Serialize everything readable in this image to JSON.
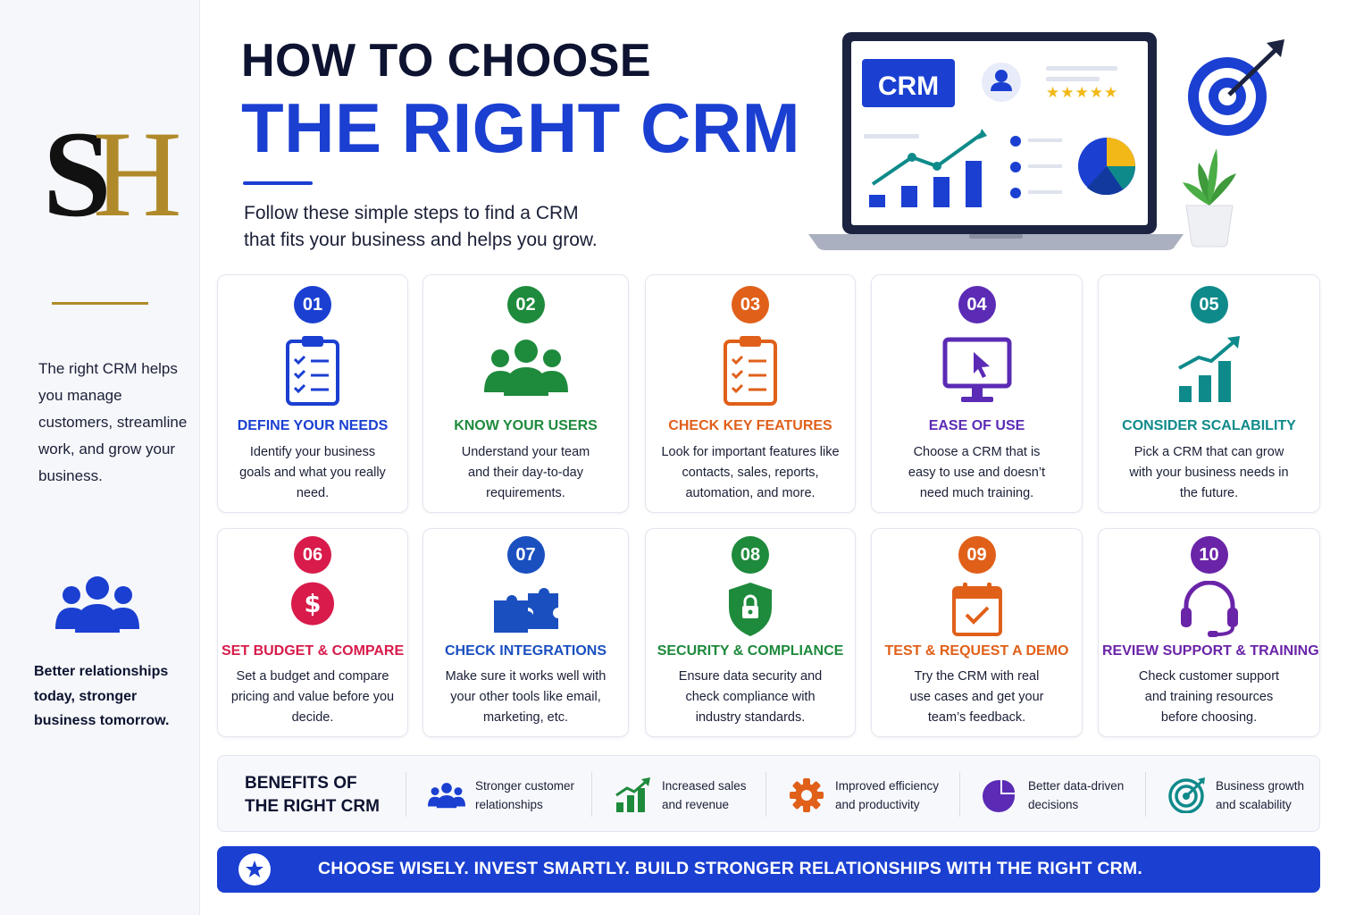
{
  "sidebar": {
    "logo_text": "SH",
    "description": "The right CRM helps you manage customers, streamline work, and grow your business.",
    "tagline": "Better relationships today, stronger business tomorrow."
  },
  "header": {
    "title_line1": "HOW TO CHOOSE",
    "title_line2": "THE RIGHT CRM",
    "subtitle_line1": "Follow these simple steps to find a CRM",
    "subtitle_line2": "that fits your business and helps you grow."
  },
  "illustration": {
    "screen_label": "CRM",
    "rating_stars": "★★★★★"
  },
  "steps": [
    {
      "number": "01",
      "title": "DEFINE YOUR NEEDS",
      "text": "Identify your business goals and what you really need.",
      "color": "#1a3fd1",
      "icon": "clipboard-checklist-icon"
    },
    {
      "number": "02",
      "title": "KNOW YOUR USERS",
      "text": "Understand your team and their day-to-day requirements.",
      "color": "#1e8a3c",
      "icon": "users-group-icon"
    },
    {
      "number": "03",
      "title": "CHECK KEY FEATURES",
      "text": "Look for important features like contacts, sales, reports, automation, and more.",
      "color": "#e0601a",
      "icon": "clipboard-checklist-icon"
    },
    {
      "number": "04",
      "title": "EASE OF USE",
      "text": "Choose a CRM that is easy to use and doesn’t need much training.",
      "color": "#5b2bb5",
      "icon": "monitor-cursor-icon"
    },
    {
      "number": "05",
      "title": "CONSIDER SCALABILITY",
      "text": "Pick a CRM that can grow with your business needs in the future.",
      "color": "#0f8a8a",
      "icon": "growth-chart-icon"
    },
    {
      "number": "06",
      "title": "SET BUDGET & COMPARE",
      "text": "Set a budget and compare pricing and value before you decide.",
      "color": "#d81b4a",
      "icon": "dollar-coin-icon"
    },
    {
      "number": "07",
      "title": "CHECK INTEGRATIONS",
      "text": "Make sure it works well with your other tools like email, marketing, etc.",
      "color": "#1a4fc0",
      "icon": "puzzle-icon"
    },
    {
      "number": "08",
      "title": "SECURITY & COMPLIANCE",
      "text": "Ensure data security and check compliance with industry standards.",
      "color": "#1e8a3c",
      "icon": "shield-lock-icon"
    },
    {
      "number": "09",
      "title": "TEST & REQUEST A DEMO",
      "text": "Try the CRM with real use cases and get your team’s feedback.",
      "color": "#e0601a",
      "icon": "calendar-check-icon"
    },
    {
      "number": "10",
      "title": "REVIEW SUPPORT & TRAINING",
      "text": "Check customer support and training resources before choosing.",
      "color": "#6a24a8",
      "icon": "headset-icon"
    }
  ],
  "benefits": {
    "title_line1": "BENEFITS OF",
    "title_line2": "THE RIGHT CRM",
    "items": [
      {
        "line1": "Stronger customer",
        "line2": "relationships",
        "icon": "users-group-icon",
        "color": "#1a3fd1"
      },
      {
        "line1": "Increased sales",
        "line2": "and revenue",
        "icon": "growth-chart-icon",
        "color": "#1e8a3c"
      },
      {
        "line1": "Improved efficiency",
        "line2": "and productivity",
        "icon": "gear-icon",
        "color": "#e0601a"
      },
      {
        "line1": "Better data-driven",
        "line2": "decisions",
        "icon": "pie-chart-icon",
        "color": "#5b2bb5"
      },
      {
        "line1": "Business growth",
        "line2": "and scalability",
        "icon": "target-icon",
        "color": "#0f8a8a"
      }
    ]
  },
  "banner": {
    "text": "CHOOSE WISELY. INVEST SMARTLY. BUILD STRONGER RELATIONSHIPS WITH THE RIGHT CRM.",
    "icon": "star-icon"
  },
  "colors": {
    "brand_blue": "#1a3fd1",
    "navy": "#0d1330",
    "gold": "#b08a2a"
  }
}
